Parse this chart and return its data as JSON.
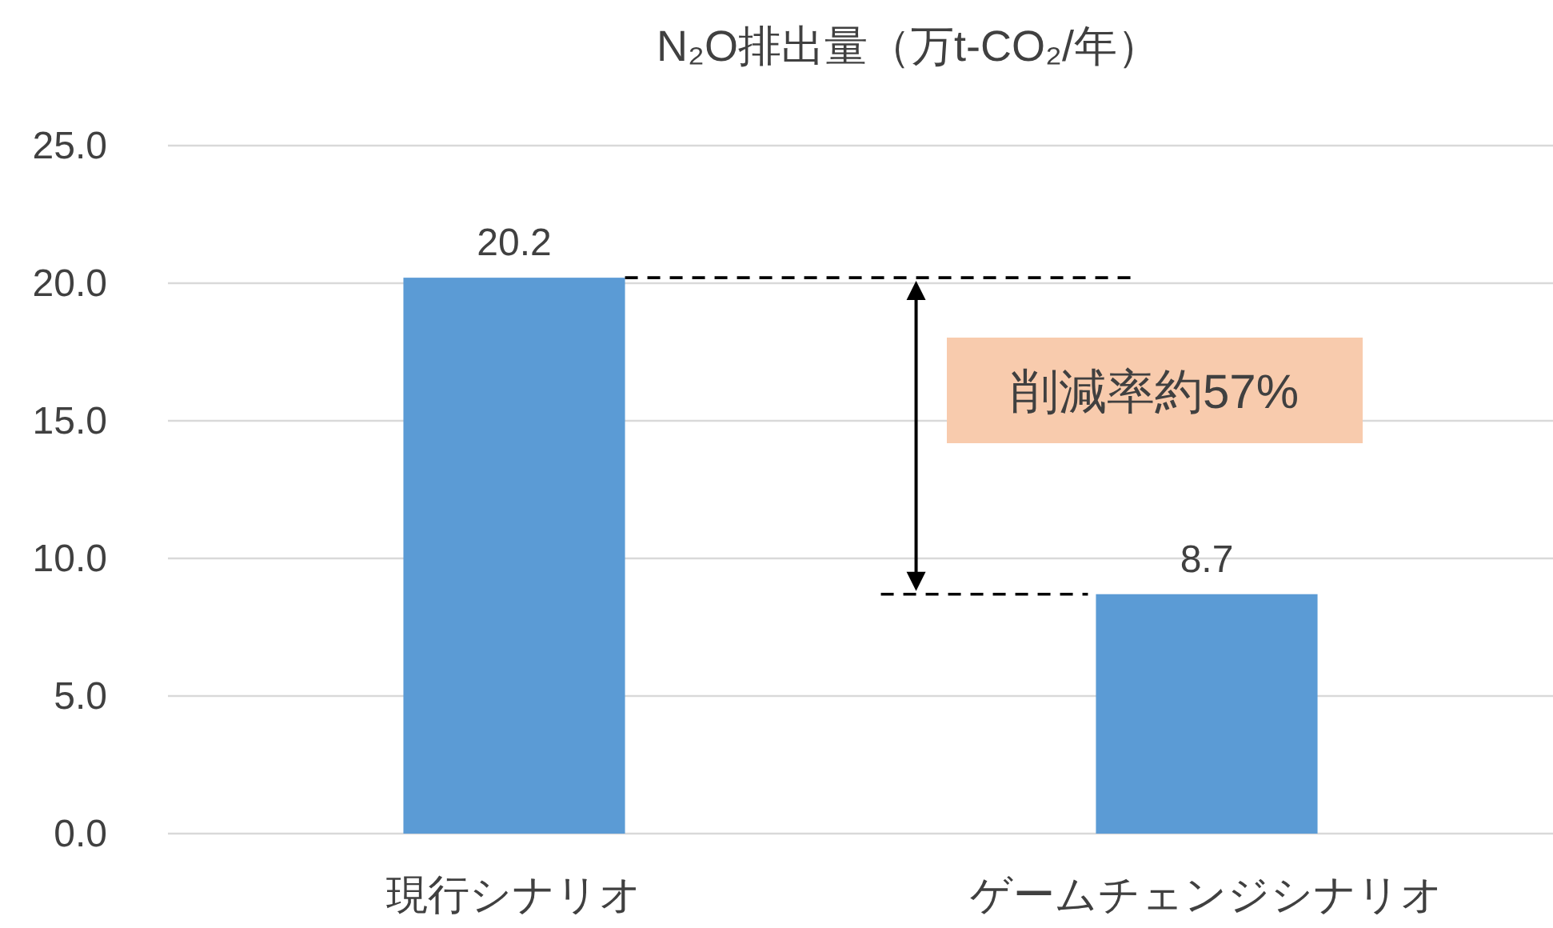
{
  "chart_data": {
    "type": "bar",
    "title": "N₂O排出量（万t-CO₂/年）",
    "categories": [
      "現行シナリオ",
      "ゲームチェンジシナリオ"
    ],
    "values": [
      20.2,
      8.7
    ],
    "color": "#5b9bd5",
    "ylim": [
      0,
      25
    ],
    "yticks": [
      {
        "value": 0,
        "label": "0.0"
      },
      {
        "value": 5,
        "label": "5.0"
      },
      {
        "value": 10,
        "label": "10.0"
      },
      {
        "value": 15,
        "label": "15.0"
      },
      {
        "value": 20,
        "label": "20.0"
      },
      {
        "value": 25,
        "label": "25.0"
      }
    ],
    "grid": "y",
    "data_labels": true,
    "ref_lines": [
      {
        "axis": "y",
        "value": 20.2,
        "line_style": "dashed",
        "color": "#000000"
      },
      {
        "axis": "y",
        "value": 8.7,
        "line_style": "dashed",
        "color": "#000000"
      }
    ],
    "annotations": [
      "削減率約57%"
    ]
  }
}
